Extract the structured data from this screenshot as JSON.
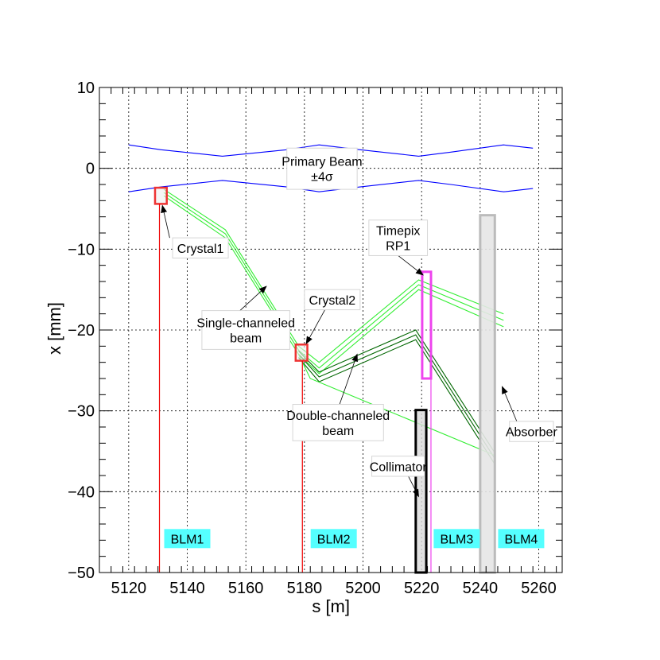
{
  "chart_data": {
    "type": "line",
    "title": "",
    "xlabel": "s [m]",
    "ylabel": "x [mm]",
    "xlim": [
      5110,
      5268
    ],
    "ylim": [
      -50,
      10
    ],
    "grid": true,
    "x_ticks": [
      5120,
      5140,
      5160,
      5180,
      5200,
      5220,
      5240,
      5260
    ],
    "x_tick_labels": [
      "5120",
      "5140",
      "5160",
      "5180",
      "5200",
      "5220",
      "5240",
      "5260"
    ],
    "y_ticks": [
      10,
      0,
      -10,
      -20,
      -30,
      -40,
      -50
    ],
    "y_tick_labels": [
      "10",
      "0",
      "−10",
      "−20",
      "−30",
      "−40",
      "−50"
    ],
    "colors": {
      "primary_beam": "#0000ff",
      "single_channeled": "#33ee33",
      "double_channeled": "#006600",
      "crystal_box": "#ee3333",
      "crystal_fill": "#eeeeee",
      "timepix": "#ee44ee",
      "collimator": "#000000",
      "absorber": "#bbbbbb",
      "absorber_fill": "#e6e6e6",
      "blm_line": "#ee0000",
      "blm_label_bg": "#55ffff",
      "grid": "#000000"
    },
    "series": [
      {
        "group": "primary_beam",
        "x": [
          5120,
          5131,
          5152,
          5174,
          5185,
          5199,
          5219,
          5230,
          5248,
          5258
        ],
        "y": [
          2.9,
          2.3,
          1.5,
          2.3,
          2.9,
          2.3,
          1.5,
          2.0,
          2.9,
          2.5
        ]
      },
      {
        "group": "primary_beam",
        "x": [
          5120,
          5131,
          5152,
          5174,
          5185,
          5199,
          5219,
          5230,
          5248,
          5258
        ],
        "y": [
          -2.9,
          -2.3,
          -1.5,
          -2.3,
          -2.9,
          -2.3,
          -1.5,
          -2.0,
          -2.9,
          -2.5
        ]
      },
      {
        "group": "single_channeled",
        "x": [
          5132,
          5153,
          5178,
          5185,
          5219,
          5248
        ],
        "y": [
          -2.6,
          -7.6,
          -22.0,
          -24.0,
          -13.8,
          -18.0
        ]
      },
      {
        "group": "single_channeled",
        "x": [
          5132,
          5153,
          5178,
          5185,
          5219,
          5248
        ],
        "y": [
          -3.0,
          -8.1,
          -22.5,
          -24.7,
          -14.4,
          -18.8
        ]
      },
      {
        "group": "single_channeled",
        "x": [
          5132,
          5153,
          5178,
          5185,
          5219,
          5248
        ],
        "y": [
          -3.4,
          -8.6,
          -23.0,
          -25.4,
          -15.0,
          -19.6
        ]
      },
      {
        "group": "double_channeled",
        "x": [
          5178,
          5185,
          5218,
          5245
        ],
        "y": [
          -22.6,
          -25.2,
          -20.0,
          -35.2
        ]
      },
      {
        "group": "double_channeled",
        "x": [
          5178,
          5185,
          5218,
          5245
        ],
        "y": [
          -23.0,
          -25.8,
          -20.6,
          -35.9
        ]
      },
      {
        "group": "double_channeled",
        "x": [
          5178,
          5185,
          5218,
          5245
        ],
        "y": [
          -23.4,
          -26.4,
          -21.2,
          -36.6
        ]
      },
      {
        "group": "single_channeled",
        "x": [
          5178,
          5182,
          5245
        ],
        "y": [
          -23.0,
          -26.0,
          -35.5
        ]
      }
    ],
    "elements": [
      {
        "name": "crystal1",
        "kind": "crystal",
        "s": [
          5129,
          5133
        ],
        "x": [
          -4.4,
          -2.4
        ]
      },
      {
        "name": "crystal2",
        "kind": "crystal",
        "s": [
          5177,
          5181
        ],
        "x": [
          -23.8,
          -21.8
        ]
      },
      {
        "name": "timepix",
        "kind": "timepix",
        "s": [
          5220.2,
          5223.2
        ],
        "x": [
          -26.0,
          -12.8
        ]
      },
      {
        "name": "collimator",
        "kind": "collimator",
        "s": [
          5218,
          5221.6
        ],
        "x": [
          -50,
          -29.9
        ]
      },
      {
        "name": "absorber",
        "kind": "absorber",
        "s": [
          5240,
          5245
        ],
        "x": [
          -50,
          -5.8
        ]
      }
    ],
    "blm_lines": [
      {
        "s": 5130.5,
        "x_top": -4.4,
        "color": "#ee0000"
      },
      {
        "s": 5179.3,
        "x_top": -23.8,
        "color": "#ee0000"
      },
      {
        "s": 5223.2,
        "x_top": -26.0,
        "color": "#ee44ee"
      },
      {
        "s": 5219.8,
        "x_top": -50,
        "color": "#999999"
      }
    ],
    "blm_labels": [
      {
        "text": "BLM1",
        "s": 5140,
        "x": -45.8
      },
      {
        "text": "BLM2",
        "s": 5190,
        "x": -45.8
      },
      {
        "text": "BLM3",
        "s": 5232,
        "x": -45.8
      },
      {
        "text": "BLM4",
        "s": 5254,
        "x": -45.8
      }
    ],
    "annotations": [
      {
        "name": "primary-beam-label",
        "lines": [
          "Primary Beam",
          "±4σ"
        ],
        "box_s": [
          5174,
          5198
        ],
        "box_x": [
          -2.6,
          2.5
        ],
        "arrow": null
      },
      {
        "name": "crystal1-label",
        "lines": [
          "Crystal1"
        ],
        "box_s": [
          5135,
          5154
        ],
        "box_x": [
          -11.1,
          -8.6
        ],
        "arrow": {
          "from": [
            5134,
            -8.6
          ],
          "to": [
            5131.5,
            -4.6
          ]
        }
      },
      {
        "name": "timepix-label",
        "lines": [
          "Timepix",
          "RP1"
        ],
        "box_s": [
          5202,
          5222
        ],
        "box_x": [
          -10.8,
          -6.4
        ],
        "arrow": {
          "from": [
            5212,
            -10.8
          ],
          "to": [
            5220.5,
            -13.2
          ]
        }
      },
      {
        "name": "single-channeled-label",
        "lines": [
          "Single-channeled",
          "beam"
        ],
        "box_s": [
          5145,
          5175
        ],
        "box_x": [
          -22.4,
          -17.6
        ],
        "arrow": {
          "from": [
            5158,
            -17.6
          ],
          "to": [
            5167,
            -14.6
          ]
        }
      },
      {
        "name": "crystal2-label",
        "lines": [
          "Crystal2"
        ],
        "box_s": [
          5180,
          5199
        ],
        "box_x": [
          -17.5,
          -15.0
        ],
        "arrow": {
          "from": [
            5187,
            -17.5
          ],
          "to": [
            5180.6,
            -21.7
          ]
        }
      },
      {
        "name": "double-channeled-label",
        "lines": [
          "Double-channeled",
          "beam"
        ],
        "box_s": [
          5176,
          5207
        ],
        "box_x": [
          -33.7,
          -29.2
        ],
        "arrow": {
          "from": [
            5192,
            -29.2
          ],
          "to": [
            5198,
            -23.0
          ]
        }
      },
      {
        "name": "collimator-label",
        "lines": [
          "Collimator"
        ],
        "box_s": [
          5203,
          5221
        ],
        "box_x": [
          -38.1,
          -35.6
        ],
        "arrow": {
          "from": [
            5215.5,
            -38.1
          ],
          "to": [
            5219,
            -40.6
          ]
        }
      },
      {
        "name": "absorber-label",
        "lines": [
          "Absorber"
        ],
        "box_s": [
          5250,
          5265
        ],
        "box_x": [
          -33.8,
          -31.3
        ],
        "arrow": {
          "from": [
            5252.5,
            -31.3
          ],
          "to": [
            5247.5,
            -27.0
          ]
        }
      }
    ]
  }
}
